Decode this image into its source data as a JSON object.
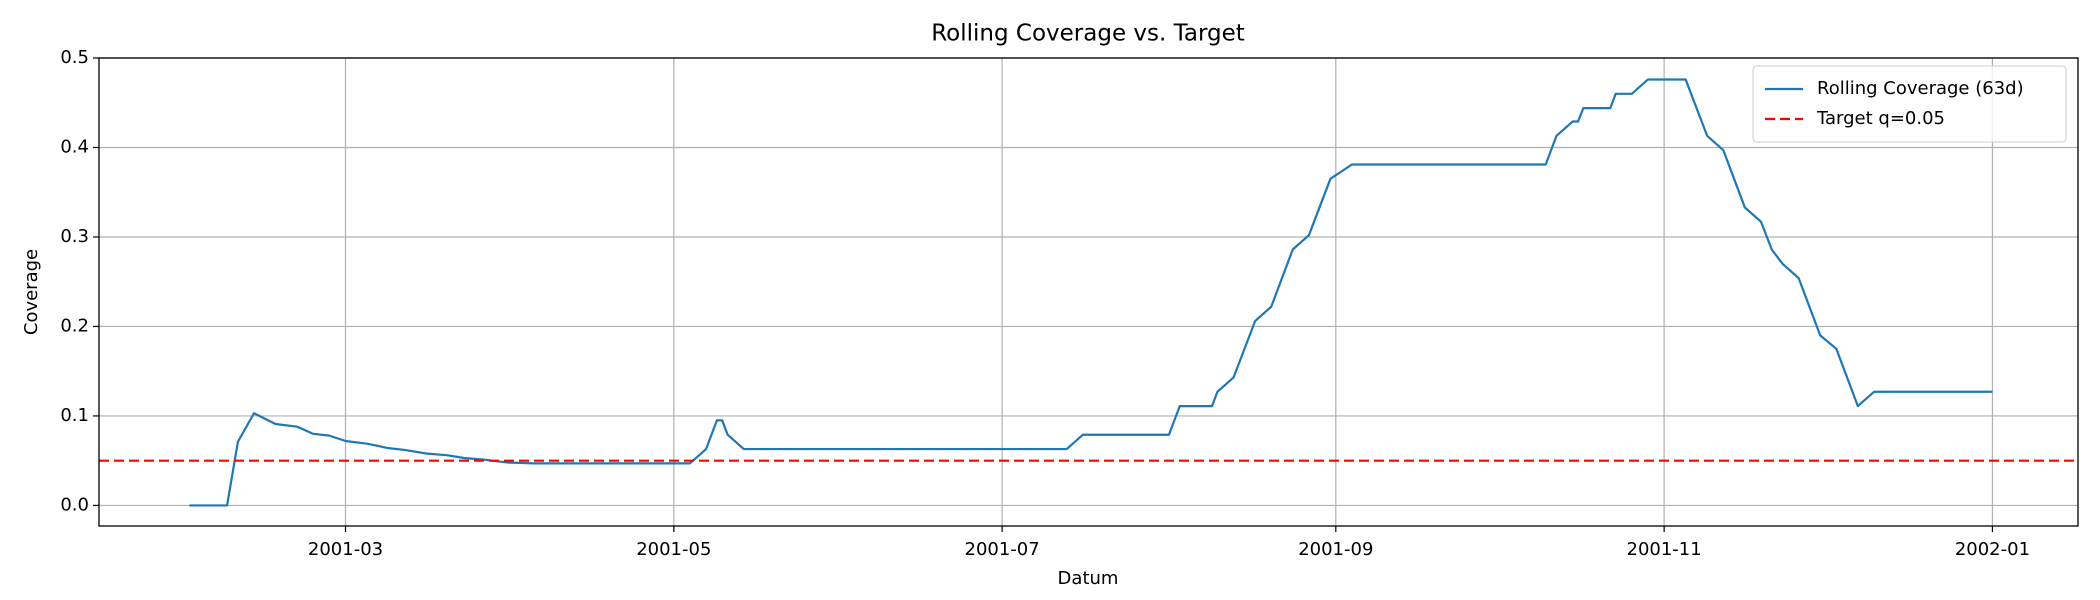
{
  "chart_data": {
    "type": "line",
    "title": "Rolling Coverage vs. Target",
    "x_label": "Datum",
    "y_label": "Coverage",
    "series": [
      {
        "name": "Rolling Coverage (63d)",
        "color": "#1f77b4",
        "x": [
          30,
          37,
          39,
          42,
          46,
          50,
          53,
          56,
          59,
          63,
          67,
          70,
          74,
          78,
          81,
          85,
          89,
          94,
          123,
          126,
          128,
          129,
          130,
          133,
          193,
          196,
          212,
          214,
          220,
          221,
          224,
          228,
          231,
          235,
          238,
          242,
          246,
          282,
          284,
          287,
          288,
          289,
          294,
          295,
          298,
          301,
          308,
          312,
          315,
          319,
          322,
          324,
          326,
          329,
          333,
          336,
          340,
          343,
          365
        ],
        "values": [
          0.0,
          0.0,
          0.071,
          0.103,
          0.091,
          0.088,
          0.08,
          0.078,
          0.072,
          0.069,
          0.064,
          0.062,
          0.058,
          0.056,
          0.053,
          0.051,
          0.048,
          0.047,
          0.047,
          0.063,
          0.095,
          0.095,
          0.079,
          0.063,
          0.063,
          0.079,
          0.079,
          0.111,
          0.111,
          0.127,
          0.143,
          0.206,
          0.222,
          0.286,
          0.302,
          0.365,
          0.381,
          0.381,
          0.413,
          0.429,
          0.429,
          0.444,
          0.444,
          0.46,
          0.46,
          0.476,
          0.476,
          0.413,
          0.397,
          0.333,
          0.317,
          0.286,
          0.27,
          0.254,
          0.19,
          0.175,
          0.111,
          0.127,
          0.127
        ]
      }
    ],
    "target": {
      "name": "Target q=0.05",
      "value": 0.05,
      "color": "#ff0000",
      "style": "dashed"
    },
    "xlim": [
      13.2,
      380.9
    ],
    "ylim": [
      -0.023,
      0.5
    ],
    "xticks": [
      {
        "value": 59,
        "label": "2001-03"
      },
      {
        "value": 120,
        "label": "2001-05"
      },
      {
        "value": 181,
        "label": "2001-07"
      },
      {
        "value": 243,
        "label": "2001-09"
      },
      {
        "value": 304,
        "label": "2001-11"
      },
      {
        "value": 365,
        "label": "2002-01"
      }
    ],
    "yticks": [
      {
        "value": 0,
        "label": "0.0"
      },
      0.1,
      0.2,
      0.3,
      0.4,
      0.5
    ],
    "grid": true,
    "legend": "upper right"
  }
}
